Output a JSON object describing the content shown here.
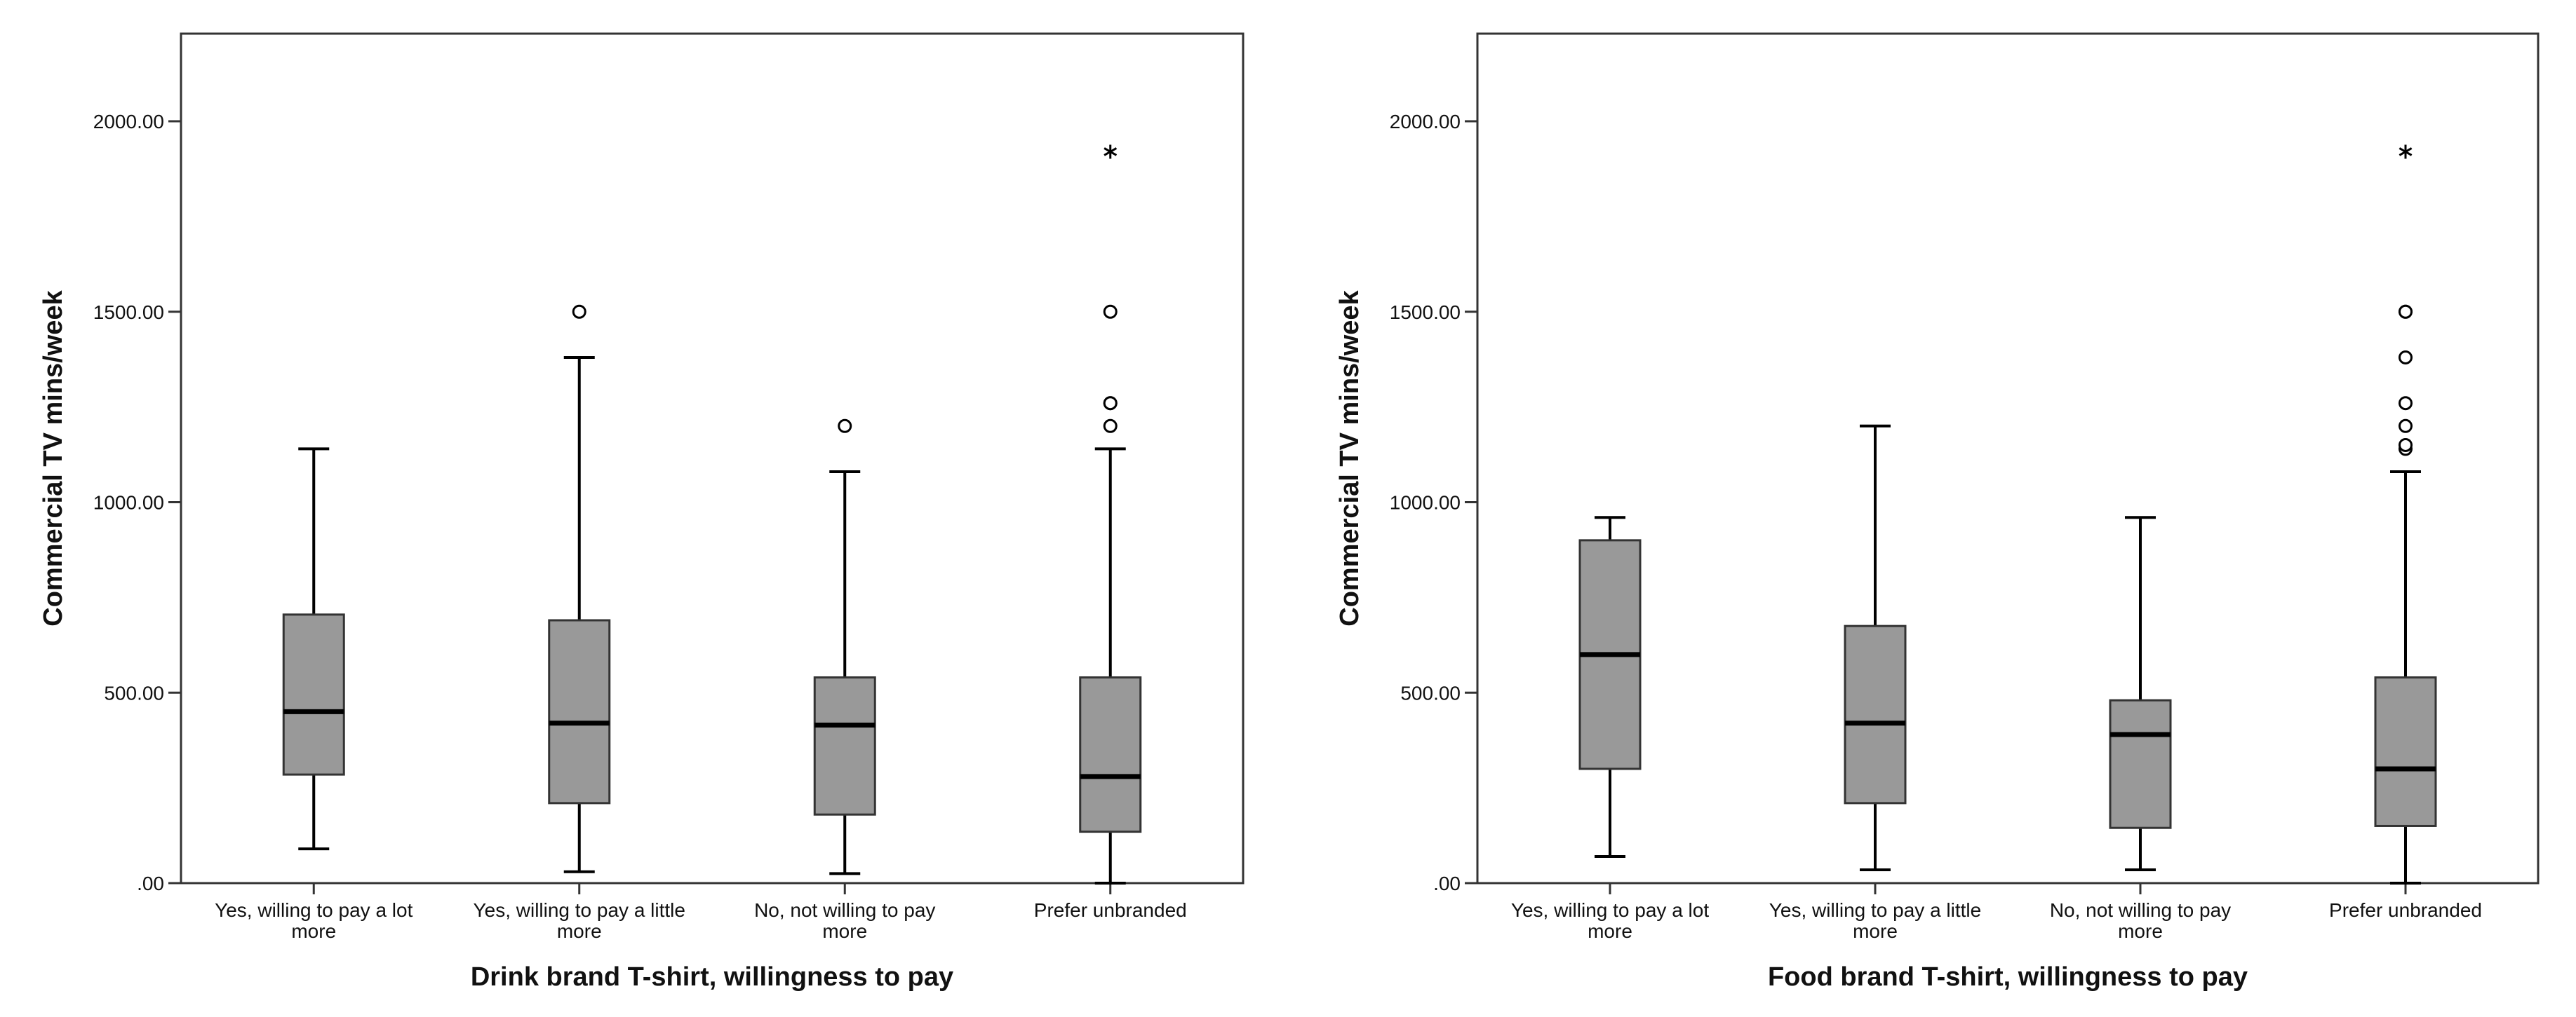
{
  "colors": {
    "box_fill": "#999999",
    "box_stroke": "#333333",
    "line": "#000000",
    "frame": "#333333"
  },
  "chart_data": [
    {
      "type": "box",
      "xlabel": "Drink brand T-shirt, willingness to pay",
      "ylabel": "Commercial TV mins/week",
      "ylim": [
        0,
        2230
      ],
      "yticks": [
        0,
        500,
        1000,
        1500,
        2000
      ],
      "ytick_labels": [
        ".00",
        "500.00",
        "1000.00",
        "1500.00",
        "2000.00"
      ],
      "grid": false,
      "categories": [
        [
          "Yes, willing to pay a lot",
          "more"
        ],
        [
          "Yes, willing to pay a little",
          "more"
        ],
        [
          "No, not willing to pay",
          "more"
        ],
        [
          "Prefer unbranded"
        ]
      ],
      "boxes": [
        {
          "whisker_low": 90,
          "q1": 285,
          "median": 450,
          "q3": 705,
          "whisker_high": 1140,
          "outliers": [],
          "extremes": []
        },
        {
          "whisker_low": 30,
          "q1": 210,
          "median": 420,
          "q3": 690,
          "whisker_high": 1380,
          "outliers": [
            1500
          ],
          "extremes": []
        },
        {
          "whisker_low": 25,
          "q1": 180,
          "median": 415,
          "q3": 540,
          "whisker_high": 1080,
          "outliers": [
            1200
          ],
          "extremes": []
        },
        {
          "whisker_low": 0,
          "q1": 135,
          "median": 280,
          "q3": 540,
          "whisker_high": 1140,
          "outliers": [
            1200,
            1260,
            1260,
            1500
          ],
          "extremes": [
            1920
          ]
        }
      ]
    },
    {
      "type": "box",
      "xlabel": "Food brand T-shirt, willingness to pay",
      "ylabel": "Commercial TV mins/week",
      "ylim": [
        0,
        2230
      ],
      "yticks": [
        0,
        500,
        1000,
        1500,
        2000
      ],
      "ytick_labels": [
        ".00",
        "500.00",
        "1000.00",
        "1500.00",
        "2000.00"
      ],
      "grid": false,
      "categories": [
        [
          "Yes, willing to pay a lot",
          "more"
        ],
        [
          "Yes, willing to pay a little",
          "more"
        ],
        [
          "No, not willing to pay",
          "more"
        ],
        [
          "Prefer unbranded"
        ]
      ],
      "boxes": [
        {
          "whisker_low": 70,
          "q1": 300,
          "median": 600,
          "q3": 900,
          "whisker_high": 960,
          "outliers": [],
          "extremes": []
        },
        {
          "whisker_low": 35,
          "q1": 210,
          "median": 420,
          "q3": 675,
          "whisker_high": 1200,
          "outliers": [],
          "extremes": []
        },
        {
          "whisker_low": 35,
          "q1": 145,
          "median": 390,
          "q3": 480,
          "whisker_high": 960,
          "outliers": [],
          "extremes": []
        },
        {
          "whisker_low": 0,
          "q1": 150,
          "median": 300,
          "q3": 540,
          "whisker_high": 1080,
          "outliers": [
            1140,
            1150,
            1200,
            1260,
            1380,
            1500,
            1500
          ],
          "extremes": [
            1920
          ]
        }
      ]
    }
  ]
}
